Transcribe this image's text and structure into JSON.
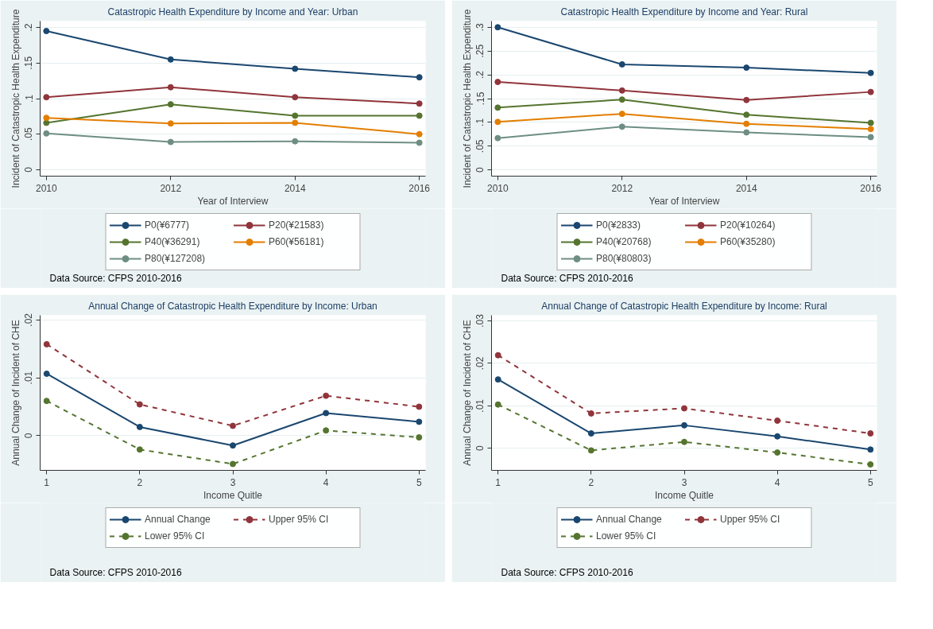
{
  "chart_data": [
    {
      "type": "line",
      "title": "Catastropic Health Expenditure by Income and Year: Urban",
      "xlabel": "Year of Interview",
      "ylabel": "Incident of Catastropic Health Expenditure",
      "x": [
        2010,
        2012,
        2014,
        2016
      ],
      "xlim": [
        2009.9,
        2016.1
      ],
      "xticks": [
        2010,
        2012,
        2014,
        2016
      ],
      "ylim": [
        -0.009,
        0.209
      ],
      "yticks": [
        {
          "value": 0,
          "label": "0"
        },
        {
          "value": 0.05,
          "label": ".05"
        },
        {
          "value": 0.1,
          "label": ".1"
        },
        {
          "value": 0.15,
          "label": ".15"
        },
        {
          "value": 0.2,
          "label": ".2"
        }
      ],
      "grid": "y",
      "legend": "bottom",
      "marker": "circle",
      "line_style": "solid",
      "annotations": [
        "Data Source: CFPS 2010-2016"
      ],
      "series": [
        {
          "name": "P0(¥6777)",
          "color": "#1a476f",
          "values": [
            0.195,
            0.155,
            0.142,
            0.13
          ]
        },
        {
          "name": "P20(¥21583)",
          "color": "#90353b",
          "values": [
            0.102,
            0.116,
            0.102,
            0.093
          ]
        },
        {
          "name": "P40(¥36291)",
          "color": "#55752f",
          "values": [
            0.066,
            0.092,
            0.076,
            0.076
          ]
        },
        {
          "name": "P60(¥56181)",
          "color": "#e37e00",
          "values": [
            0.073,
            0.065,
            0.066,
            0.05
          ]
        },
        {
          "name": "P80(¥127208)",
          "color": "#6e8e84",
          "values": [
            0.051,
            0.039,
            0.04,
            0.038
          ]
        }
      ]
    },
    {
      "type": "line",
      "title": "Catastropic Health Expenditure by Income and Year: Rural",
      "xlabel": "Year of Interview",
      "ylabel": "Incident of Catastropic Health Expenditure",
      "x": [
        2010,
        2012,
        2014,
        2016
      ],
      "xlim": [
        2009.9,
        2016.1
      ],
      "xticks": [
        2010,
        2012,
        2014,
        2016
      ],
      "ylim": [
        -0.013,
        0.313
      ],
      "yticks": [
        {
          "value": 0,
          "label": "0"
        },
        {
          "value": 0.05,
          "label": ".05"
        },
        {
          "value": 0.1,
          "label": ".1"
        },
        {
          "value": 0.15,
          "label": ".15"
        },
        {
          "value": 0.2,
          "label": ".2"
        },
        {
          "value": 0.25,
          "label": ".25"
        },
        {
          "value": 0.3,
          "label": ".3"
        }
      ],
      "grid": "y",
      "legend": "bottom",
      "marker": "circle",
      "line_style": "solid",
      "annotations": [
        "Data Source: CFPS 2010-2016"
      ],
      "series": [
        {
          "name": "P0(¥2833)",
          "color": "#1a476f",
          "values": [
            0.3,
            0.222,
            0.215,
            0.204
          ]
        },
        {
          "name": "P20(¥10264)",
          "color": "#90353b",
          "values": [
            0.185,
            0.167,
            0.147,
            0.164
          ]
        },
        {
          "name": "P40(¥20768)",
          "color": "#55752f",
          "values": [
            0.131,
            0.148,
            0.116,
            0.099
          ]
        },
        {
          "name": "P60(¥35280)",
          "color": "#e37e00",
          "values": [
            0.101,
            0.118,
            0.097,
            0.086
          ]
        },
        {
          "name": "P80(¥80803)",
          "color": "#6e8e84",
          "values": [
            0.067,
            0.091,
            0.079,
            0.069
          ]
        }
      ]
    },
    {
      "type": "line",
      "title": "Annual Change of Catastropic Health Expenditure by Income: Urban",
      "xlabel": "Income Quitle",
      "ylabel": "Annual Change of Incident of CHE",
      "x": [
        1,
        2,
        3,
        4,
        5
      ],
      "xlim": [
        0.93,
        5.07
      ],
      "xticks": [
        1,
        2,
        3,
        4,
        5
      ],
      "ylim": [
        -0.006,
        0.0208
      ],
      "yticks": [
        {
          "value": 0,
          "label": "0"
        },
        {
          "value": 0.01,
          "label": ".01"
        },
        {
          "value": 0.02,
          "label": ".02"
        }
      ],
      "grid": "y",
      "legend": "bottom",
      "marker": "circle",
      "annotations": [
        "Data Source: CFPS 2010-2016"
      ],
      "series": [
        {
          "name": "Annual Change",
          "color": "#1a476f",
          "line_style": "solid",
          "values": [
            0.0107,
            0.0015,
            -0.0017,
            0.0039,
            0.0024
          ]
        },
        {
          "name": "Upper 95% CI",
          "color": "#90353b",
          "line_style": "dashed",
          "values": [
            0.0158,
            0.0054,
            0.0017,
            0.0069,
            0.005
          ]
        },
        {
          "name": "Lower 95% CI",
          "color": "#55752f",
          "line_style": "dashed",
          "values": [
            0.006,
            -0.0024,
            -0.0049,
            0.0009,
            -0.0003
          ]
        }
      ]
    },
    {
      "type": "line",
      "title": "Annual Change of Catastropic Health Expenditure by Income: Rural",
      "xlabel": "Income Quitle",
      "ylabel": "Annual Change of Incident of CHE",
      "x": [
        1,
        2,
        3,
        4,
        5
      ],
      "xlim": [
        0.93,
        5.07
      ],
      "xticks": [
        1,
        2,
        3,
        4,
        5
      ],
      "ylim": [
        -0.0052,
        0.0313
      ],
      "yticks": [
        {
          "value": 0,
          "label": "0"
        },
        {
          "value": 0.01,
          "label": ".01"
        },
        {
          "value": 0.02,
          "label": ".02"
        },
        {
          "value": 0.03,
          "label": ".03"
        }
      ],
      "grid": "y",
      "legend": "bottom",
      "marker": "circle",
      "annotations": [
        "Data Source: CFPS 2010-2016"
      ],
      "series": [
        {
          "name": "Annual Change",
          "color": "#1a476f",
          "line_style": "solid",
          "values": [
            0.0162,
            0.0035,
            0.0054,
            0.0028,
            -0.0003
          ]
        },
        {
          "name": "Upper 95% CI",
          "color": "#90353b",
          "line_style": "dashed",
          "values": [
            0.0219,
            0.0082,
            0.0094,
            0.0065,
            0.0035
          ]
        },
        {
          "name": "Lower 95% CI",
          "color": "#55752f",
          "line_style": "dashed",
          "values": [
            0.0103,
            -0.0005,
            0.0015,
            -0.001,
            -0.0038
          ]
        }
      ]
    }
  ]
}
